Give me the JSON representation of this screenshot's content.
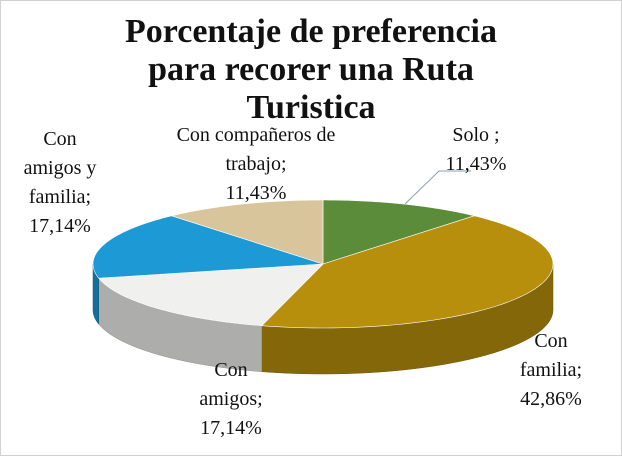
{
  "chart_data": {
    "type": "pie3d",
    "title": "Porcentaje de preferencia para recorer una Ruta Turistica",
    "categories": [
      "Solo ;",
      "Con familia;",
      "Con amigos;",
      "Con amigos y familia;",
      "Con compañeros de trabajo;"
    ],
    "values": [
      11.43,
      42.86,
      17.14,
      17.14,
      11.43
    ],
    "value_labels": [
      "11,43%",
      "42,86%",
      "17,14%",
      "17,14%",
      "11,43%"
    ],
    "colors": [
      "#5b8c3a",
      "#b88f0c",
      "#f0f0ee",
      "#1d9ad6",
      "#d9c59c"
    ]
  }
}
